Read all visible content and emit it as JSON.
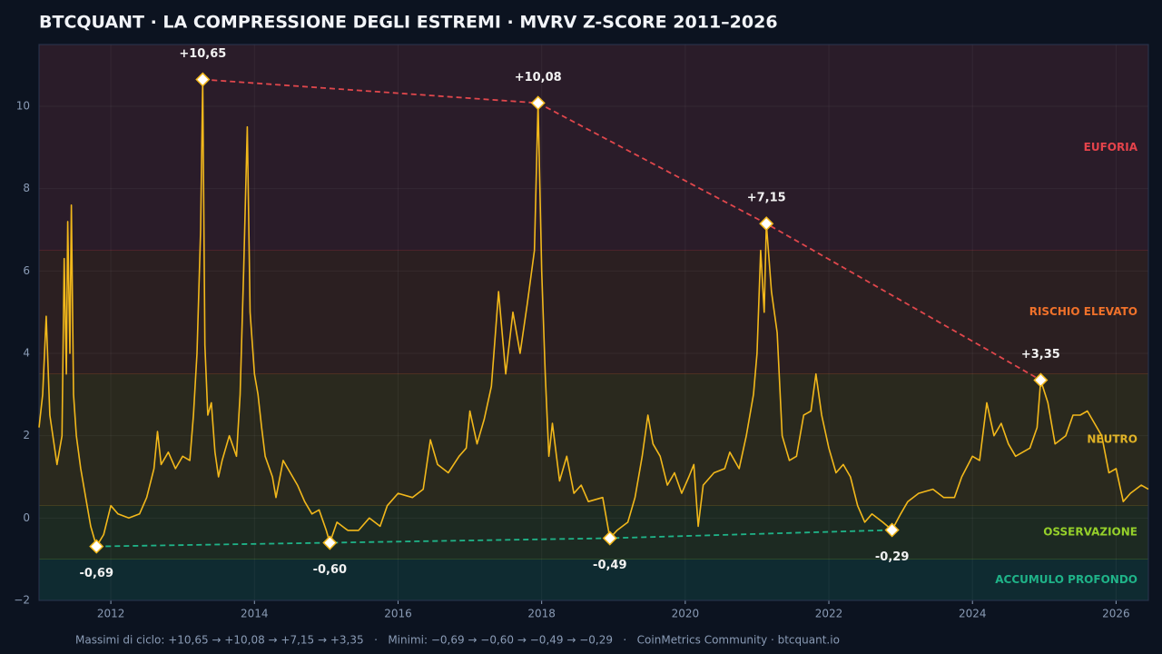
{
  "chart_data": {
    "type": "line",
    "title": "BTCQUANT · LA COMPRESSIONE DEGLI ESTREMI · MVRV Z-SCORE 2011–2026",
    "footer": "Massimi di ciclo: +10,65 → +10,08 → +7,15 → +3,35   ·   Minimi: −0,69 → −0,60 → −0,49 → −0,29   ·   CoinMetrics Community · btcquant.io",
    "xlim": [
      2011,
      2026.45
    ],
    "xticks": [
      2012,
      2014,
      2016,
      2018,
      2020,
      2022,
      2024,
      2026
    ],
    "ylim": [
      -2,
      11.5
    ],
    "yticks": [
      {
        "value": -2,
        "label": "−2"
      },
      0,
      2,
      4,
      6,
      8,
      10
    ],
    "grid": true,
    "zones": [
      {
        "name": "EUFORIA",
        "from": 6.5,
        "to": 11.5,
        "fill": "#2a1c29",
        "color": "#e5434b"
      },
      {
        "name": "RISCHIO ELEVATO",
        "from": 3.5,
        "to": 6.5,
        "fill": "#2b1f21",
        "color": "#f0712a"
      },
      {
        "name": "NEUTRO",
        "from": 0.3,
        "to": 3.5,
        "fill": "#2a291e",
        "color": "#e0b225"
      },
      {
        "name": "OSSERVAZIONE",
        "from": -1,
        "to": 0.3,
        "fill": "#1d2a22",
        "color": "#95d02a"
      },
      {
        "name": "ACCUMULO PROFONDO",
        "from": -2,
        "to": -1,
        "fill": "#0f2b31",
        "color": "#1fb388"
      }
    ],
    "series": [
      {
        "name": "MVRV Z-Score",
        "color": "#f2b81b",
        "x": [
          2011.0,
          2011.05,
          2011.1,
          2011.15,
          2011.25,
          2011.32,
          2011.35,
          2011.38,
          2011.4,
          2011.43,
          2011.45,
          2011.48,
          2011.52,
          2011.58,
          2011.65,
          2011.72,
          2011.8,
          2011.9,
          2012.0,
          2012.1,
          2012.25,
          2012.4,
          2012.5,
          2012.6,
          2012.65,
          2012.7,
          2012.8,
          2012.9,
          2013.0,
          2013.1,
          2013.15,
          2013.2,
          2013.25,
          2013.28,
          2013.31,
          2013.35,
          2013.4,
          2013.45,
          2013.5,
          2013.55,
          2013.65,
          2013.75,
          2013.8,
          2013.85,
          2013.9,
          2013.94,
          2014.0,
          2014.05,
          2014.1,
          2014.15,
          2014.25,
          2014.3,
          2014.4,
          2014.5,
          2014.6,
          2014.7,
          2014.8,
          2014.9,
          2015.0,
          2015.05,
          2015.15,
          2015.3,
          2015.45,
          2015.6,
          2015.75,
          2015.85,
          2016.0,
          2016.2,
          2016.35,
          2016.45,
          2016.55,
          2016.7,
          2016.85,
          2016.95,
          2017.0,
          2017.1,
          2017.2,
          2017.3,
          2017.4,
          2017.5,
          2017.6,
          2017.7,
          2017.8,
          2017.9,
          2017.95,
          2018.0,
          2018.05,
          2018.1,
          2018.15,
          2018.25,
          2018.35,
          2018.45,
          2018.55,
          2018.65,
          2018.85,
          2018.95,
          2019.05,
          2019.2,
          2019.3,
          2019.4,
          2019.48,
          2019.55,
          2019.65,
          2019.75,
          2019.85,
          2019.95,
          2020.05,
          2020.12,
          2020.18,
          2020.25,
          2020.4,
          2020.55,
          2020.62,
          2020.75,
          2020.85,
          2020.95,
          2021.0,
          2021.05,
          2021.1,
          2021.13,
          2021.2,
          2021.28,
          2021.35,
          2021.45,
          2021.55,
          2021.65,
          2021.75,
          2021.82,
          2021.9,
          2022.0,
          2022.1,
          2022.2,
          2022.3,
          2022.4,
          2022.5,
          2022.6,
          2022.75,
          2022.88,
          2023.0,
          2023.1,
          2023.25,
          2023.45,
          2023.6,
          2023.75,
          2023.85,
          2024.0,
          2024.1,
          2024.2,
          2024.3,
          2024.4,
          2024.5,
          2024.6,
          2024.7,
          2024.8,
          2024.9,
          2024.95,
          2025.05,
          2025.15,
          2025.3,
          2025.4,
          2025.5,
          2025.6,
          2025.7,
          2025.8,
          2025.9,
          2026.0,
          2026.1,
          2026.2,
          2026.35,
          2026.45
        ],
        "values": [
          2.2,
          3.0,
          4.9,
          2.5,
          1.3,
          2.0,
          6.3,
          3.5,
          7.2,
          4.0,
          7.6,
          3.0,
          2.0,
          1.2,
          0.5,
          -0.2,
          -0.69,
          -0.4,
          0.3,
          0.1,
          0.0,
          0.1,
          0.5,
          1.2,
          2.1,
          1.3,
          1.6,
          1.2,
          1.5,
          1.4,
          2.5,
          4.0,
          7.0,
          10.65,
          4.2,
          2.5,
          2.8,
          1.6,
          1.0,
          1.4,
          2.0,
          1.5,
          3.0,
          6.0,
          9.5,
          5.0,
          3.5,
          3.0,
          2.2,
          1.5,
          1.0,
          0.5,
          1.4,
          1.1,
          0.8,
          0.4,
          0.1,
          0.2,
          -0.3,
          -0.6,
          -0.1,
          -0.3,
          -0.3,
          0.0,
          -0.2,
          0.3,
          0.6,
          0.5,
          0.7,
          1.9,
          1.3,
          1.1,
          1.5,
          1.7,
          2.6,
          1.8,
          2.4,
          3.2,
          5.5,
          3.5,
          5.0,
          4.0,
          5.2,
          6.5,
          10.08,
          6.0,
          3.5,
          1.5,
          2.3,
          0.9,
          1.5,
          0.6,
          0.8,
          0.4,
          0.5,
          -0.49,
          -0.3,
          -0.1,
          0.5,
          1.5,
          2.5,
          1.8,
          1.5,
          0.8,
          1.1,
          0.6,
          1.0,
          1.3,
          -0.2,
          0.8,
          1.1,
          1.2,
          1.6,
          1.2,
          2.0,
          3.0,
          4.0,
          6.5,
          5.0,
          7.15,
          5.5,
          4.5,
          2.0,
          1.4,
          1.5,
          2.5,
          2.6,
          3.5,
          2.5,
          1.7,
          1.1,
          1.3,
          1.0,
          0.3,
          -0.1,
          0.1,
          -0.1,
          -0.29,
          0.1,
          0.4,
          0.6,
          0.7,
          0.5,
          0.5,
          1.0,
          1.5,
          1.4,
          2.8,
          2.0,
          2.3,
          1.8,
          1.5,
          1.6,
          1.7,
          2.2,
          3.35,
          2.8,
          1.8,
          2.0,
          2.5,
          2.5,
          2.6,
          2.3,
          2.0,
          1.1,
          1.2,
          0.4,
          0.6,
          0.8,
          0.7
        ]
      }
    ],
    "peaks": {
      "color": "#e0474c",
      "x": [
        2013.28,
        2017.95,
        2021.13,
        2024.95
      ],
      "values": [
        10.65,
        10.08,
        7.15,
        3.35
      ],
      "value_labels": [
        "+10,65",
        "+10,08",
        "+7,15",
        "+3,35"
      ]
    },
    "troughs": {
      "color": "#1fb388",
      "x": [
        2011.8,
        2015.05,
        2018.95,
        2022.88
      ],
      "values": [
        -0.69,
        -0.6,
        -0.49,
        -0.29
      ],
      "value_labels": [
        "-0,69",
        "-0,60",
        "-0,49",
        "-0,29"
      ]
    }
  }
}
